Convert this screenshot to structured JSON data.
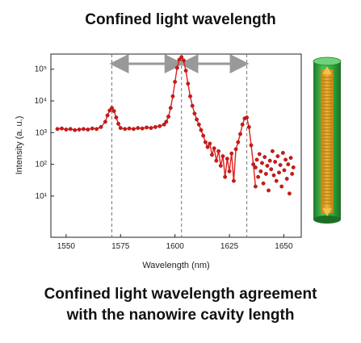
{
  "title": "Confined light wavelength",
  "caption": {
    "line1": "Confined light wavelength agreement",
    "line2": "with the nanowire cavity length"
  },
  "colors": {
    "data": "#e0201c",
    "marker": "#cc1a18",
    "guide": "#777777",
    "arrow": "#999999",
    "nanowire_outer": "#2ea83a",
    "nanowire_core": "#e9a21d"
  },
  "chart_data": {
    "type": "line",
    "xlabel": "Wavelength (nm)",
    "ylabel": "Intensity (a. u.)",
    "xlim": [
      1543,
      1658
    ],
    "ylim": [
      0.5,
      300000
    ],
    "yscale": "log",
    "x_ticks": [
      1550,
      1575,
      1600,
      1625,
      1650
    ],
    "y_ticks": [
      {
        "value": 10,
        "label": "10¹"
      },
      {
        "value": 100,
        "label": "10²"
      },
      {
        "value": 1000,
        "label": "10³"
      },
      {
        "value": 10000,
        "label": "10⁴"
      },
      {
        "value": 100000,
        "label": "10⁵"
      }
    ],
    "guide_lines": [
      1571,
      1603,
      1633
    ],
    "arrows": [
      [
        1571,
        1603
      ],
      [
        1603,
        1633
      ]
    ],
    "series": [
      {
        "values_note": "",
        "points": [
          [
            1546,
            1300
          ],
          [
            1548,
            1350
          ],
          [
            1550,
            1250
          ],
          [
            1552,
            1300
          ],
          [
            1554,
            1200
          ],
          [
            1556,
            1250
          ],
          [
            1558,
            1300
          ],
          [
            1560,
            1250
          ],
          [
            1562,
            1350
          ],
          [
            1564,
            1300
          ],
          [
            1566,
            1500
          ],
          [
            1568,
            2200
          ],
          [
            1569,
            3500
          ],
          [
            1570,
            5000
          ],
          [
            1571,
            6000
          ],
          [
            1572,
            4800
          ],
          [
            1573,
            3000
          ],
          [
            1574,
            1900
          ],
          [
            1575,
            1400
          ],
          [
            1577,
            1300
          ],
          [
            1579,
            1350
          ],
          [
            1581,
            1300
          ],
          [
            1583,
            1400
          ],
          [
            1585,
            1350
          ],
          [
            1587,
            1450
          ],
          [
            1589,
            1400
          ],
          [
            1591,
            1500
          ],
          [
            1593,
            1600
          ],
          [
            1595,
            1800
          ],
          [
            1596,
            2200
          ],
          [
            1597,
            3200
          ],
          [
            1598,
            6000
          ],
          [
            1599,
            14000
          ],
          [
            1600,
            40000
          ],
          [
            1601,
            110000
          ],
          [
            1602,
            200000
          ],
          [
            1603,
            240000
          ],
          [
            1604,
            190000
          ],
          [
            1605,
            90000
          ],
          [
            1606,
            35000
          ],
          [
            1607,
            14000
          ],
          [
            1608,
            7000
          ],
          [
            1609,
            4000
          ],
          [
            1610,
            2600
          ],
          [
            1611,
            1800
          ],
          [
            1612,
            1200
          ],
          [
            1613,
            800
          ],
          [
            1614,
            500
          ],
          [
            1615,
            350
          ],
          [
            1616,
            450
          ],
          [
            1617,
            200
          ],
          [
            1618,
            320
          ],
          [
            1619,
            130
          ],
          [
            1620,
            260
          ],
          [
            1621,
            90
          ],
          [
            1622,
            180
          ],
          [
            1623,
            40
          ],
          [
            1624,
            150
          ],
          [
            1625,
            60
          ],
          [
            1626,
            220
          ],
          [
            1627,
            30
          ],
          [
            1628,
            300
          ],
          [
            1629,
            500
          ],
          [
            1630,
            900
          ],
          [
            1631,
            1800
          ],
          [
            1632,
            2800
          ],
          [
            1633,
            3000
          ],
          [
            1634,
            1500
          ],
          [
            1635,
            400
          ],
          [
            1636,
            100
          ],
          [
            1637,
            20
          ]
        ]
      },
      {
        "values_note": "",
        "scatter": [
          [
            1637,
            80
          ],
          [
            1637.6,
            140
          ],
          [
            1638.2,
            40
          ],
          [
            1638.8,
            210
          ],
          [
            1639.4,
            60
          ],
          [
            1640,
            110
          ],
          [
            1640.6,
            25
          ],
          [
            1641.2,
            170
          ],
          [
            1641.8,
            50
          ],
          [
            1642.4,
            90
          ],
          [
            1643,
            15
          ],
          [
            1643.6,
            130
          ],
          [
            1644.2,
            70
          ],
          [
            1644.8,
            260
          ],
          [
            1645.4,
            45
          ],
          [
            1646,
            120
          ],
          [
            1646.6,
            30
          ],
          [
            1647.2,
            180
          ],
          [
            1647.8,
            55
          ],
          [
            1648.4,
            95
          ],
          [
            1649,
            20
          ],
          [
            1649.6,
            230
          ],
          [
            1650.2,
            65
          ],
          [
            1650.8,
            140
          ],
          [
            1651.4,
            35
          ],
          [
            1652,
            100
          ],
          [
            1652.6,
            12
          ],
          [
            1653.2,
            160
          ],
          [
            1653.8,
            50
          ],
          [
            1654.4,
            80
          ]
        ]
      }
    ]
  }
}
